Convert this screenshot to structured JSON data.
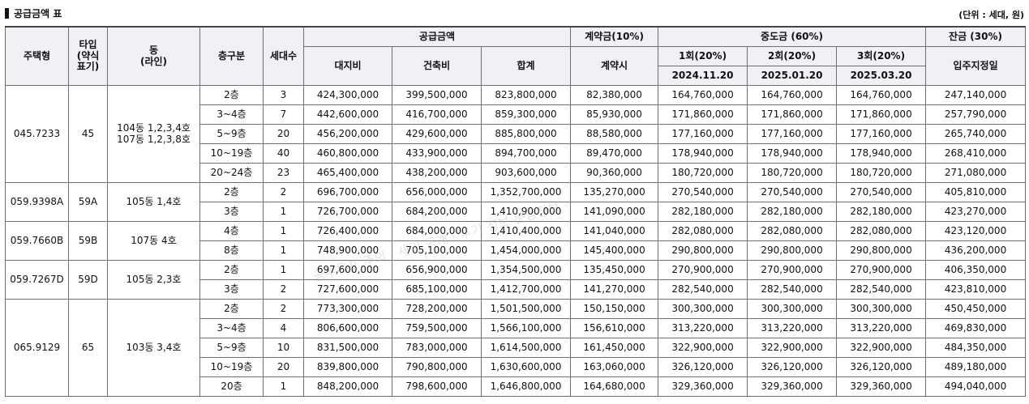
{
  "title": "공급금액 표",
  "unit_note": "(단위 : 세대, 원)",
  "headers": {
    "house_type": "주택형",
    "type_abbr": "타입 (약식표기)",
    "dong": "동 (라인)",
    "floor": "층구분",
    "households": "세대수",
    "supply_amount": "공급금액",
    "land": "대지비",
    "building": "건축비",
    "total": "합계",
    "contract_group": "계약금(10%)",
    "contract": "계약시",
    "middle_group": "중도금 (60%)",
    "mid1": "1회(20%)",
    "mid2": "2회(20%)",
    "mid3": "3회(20%)",
    "mid1_date": "2024.11.20",
    "mid2_date": "2025.01.20",
    "mid3_date": "2025.03.20",
    "balance_group": "잔금 (30%)",
    "balance": "입주지정일"
  },
  "groups": [
    {
      "house_type": "045.7233",
      "type": "45",
      "dong_line1": "104동 1,2,3,4호",
      "dong_line2": "107동 1,2,3,8호",
      "rows": [
        {
          "floor": "2층",
          "households": "3",
          "land": "424,300,000",
          "building": "399,500,000",
          "total": "823,800,000",
          "contract": "82,380,000",
          "mid1": "164,760,000",
          "mid2": "164,760,000",
          "mid3": "164,760,000",
          "balance": "247,140,000"
        },
        {
          "floor": "3~4층",
          "households": "7",
          "land": "442,600,000",
          "building": "416,700,000",
          "total": "859,300,000",
          "contract": "85,930,000",
          "mid1": "171,860,000",
          "mid2": "171,860,000",
          "mid3": "171,860,000",
          "balance": "257,790,000"
        },
        {
          "floor": "5~9층",
          "households": "20",
          "land": "456,200,000",
          "building": "429,600,000",
          "total": "885,800,000",
          "contract": "88,580,000",
          "mid1": "177,160,000",
          "mid2": "177,160,000",
          "mid3": "177,160,000",
          "balance": "265,740,000"
        },
        {
          "floor": "10~19층",
          "households": "40",
          "land": "460,800,000",
          "building": "433,900,000",
          "total": "894,700,000",
          "contract": "89,470,000",
          "mid1": "178,940,000",
          "mid2": "178,940,000",
          "mid3": "178,940,000",
          "balance": "268,410,000"
        },
        {
          "floor": "20~24층",
          "households": "23",
          "land": "465,400,000",
          "building": "438,200,000",
          "total": "903,600,000",
          "contract": "90,360,000",
          "mid1": "180,720,000",
          "mid2": "180,720,000",
          "mid3": "180,720,000",
          "balance": "271,080,000"
        }
      ]
    },
    {
      "house_type": "059.9398A",
      "type": "59A",
      "dong_line1": "105동 1,4호",
      "dong_line2": "",
      "rows": [
        {
          "floor": "2층",
          "households": "2",
          "land": "696,700,000",
          "building": "656,000,000",
          "total": "1,352,700,000",
          "contract": "135,270,000",
          "mid1": "270,540,000",
          "mid2": "270,540,000",
          "mid3": "270,540,000",
          "balance": "405,810,000"
        },
        {
          "floor": "3층",
          "households": "1",
          "land": "726,700,000",
          "building": "684,200,000",
          "total": "1,410,900,000",
          "contract": "141,090,000",
          "mid1": "282,180,000",
          "mid2": "282,180,000",
          "mid3": "282,180,000",
          "balance": "423,270,000"
        }
      ]
    },
    {
      "house_type": "059.7660B",
      "type": "59B",
      "dong_line1": "107동 4호",
      "dong_line2": "",
      "rows": [
        {
          "floor": "4층",
          "households": "1",
          "land": "726,400,000",
          "building": "684,000,000",
          "total": "1,410,400,000",
          "contract": "141,040,000",
          "mid1": "282,080,000",
          "mid2": "282,080,000",
          "mid3": "282,080,000",
          "balance": "423,120,000"
        },
        {
          "floor": "8층",
          "households": "1",
          "land": "748,900,000",
          "building": "705,100,000",
          "total": "1,454,000,000",
          "contract": "145,400,000",
          "mid1": "290,800,000",
          "mid2": "290,800,000",
          "mid3": "290,800,000",
          "balance": "436,200,000"
        }
      ]
    },
    {
      "house_type": "059.7267D",
      "type": "59D",
      "dong_line1": "105동 2,3호",
      "dong_line2": "",
      "rows": [
        {
          "floor": "2층",
          "households": "1",
          "land": "697,600,000",
          "building": "656,900,000",
          "total": "1,354,500,000",
          "contract": "135,450,000",
          "mid1": "270,900,000",
          "mid2": "270,900,000",
          "mid3": "270,900,000",
          "balance": "406,350,000"
        },
        {
          "floor": "3층",
          "households": "2",
          "land": "727,600,000",
          "building": "685,100,000",
          "total": "1,412,700,000",
          "contract": "141,270,000",
          "mid1": "282,540,000",
          "mid2": "282,540,000",
          "mid3": "282,540,000",
          "balance": "423,810,000"
        }
      ]
    },
    {
      "house_type": "065.9129",
      "type": "65",
      "dong_line1": "103동 3,4호",
      "dong_line2": "",
      "rows": [
        {
          "floor": "2층",
          "households": "2",
          "land": "773,300,000",
          "building": "728,200,000",
          "total": "1,501,500,000",
          "contract": "150,150,000",
          "mid1": "300,300,000",
          "mid2": "300,300,000",
          "mid3": "300,300,000",
          "balance": "450,450,000"
        },
        {
          "floor": "3~4층",
          "households": "4",
          "land": "806,600,000",
          "building": "759,500,000",
          "total": "1,566,100,000",
          "contract": "156,610,000",
          "mid1": "313,220,000",
          "mid2": "313,220,000",
          "mid3": "313,220,000",
          "balance": "469,830,000"
        },
        {
          "floor": "5~9층",
          "households": "10",
          "land": "831,500,000",
          "building": "783,000,000",
          "total": "1,614,500,000",
          "contract": "161,450,000",
          "mid1": "322,900,000",
          "mid2": "322,900,000",
          "mid3": "322,900,000",
          "balance": "484,350,000"
        },
        {
          "floor": "10~19층",
          "households": "20",
          "land": "839,800,000",
          "building": "790,800,000",
          "total": "1,630,600,000",
          "contract": "163,060,000",
          "mid1": "326,120,000",
          "mid2": "326,120,000",
          "mid3": "326,120,000",
          "balance": "489,180,000"
        },
        {
          "floor": "20층",
          "households": "1",
          "land": "848,200,000",
          "building": "798,600,000",
          "total": "1,646,800,000",
          "contract": "164,680,000",
          "mid1": "329,360,000",
          "mid2": "329,360,000",
          "mid3": "329,360,000",
          "balance": "494,040,000"
        }
      ]
    }
  ]
}
